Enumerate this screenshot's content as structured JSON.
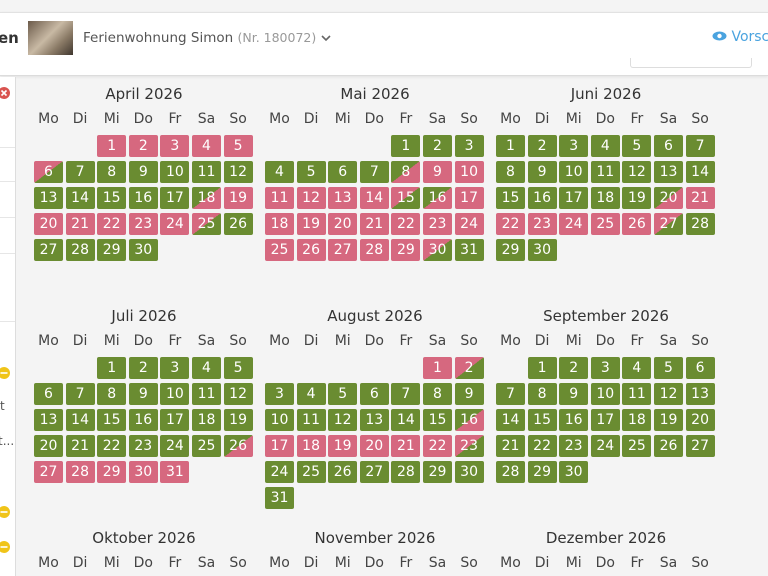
{
  "header": {
    "left_cut": "en",
    "property": "Ferienwohnung Simon",
    "number": "(Nr. 180072)",
    "preview": "Vorsch"
  },
  "sidebar": {
    "items": [
      "t",
      "t..."
    ]
  },
  "calendar": {
    "weekdays": [
      "Mo",
      "Di",
      "Mi",
      "Do",
      "Fr",
      "Sa",
      "So"
    ],
    "status_colors": {
      "f": "#6a8c31",
      "b": "#d6687f"
    },
    "months": [
      {
        "title": "April 2026",
        "weeks": [
          [
            null,
            null,
            [
              1,
              "b"
            ],
            [
              2,
              "b"
            ],
            [
              3,
              "b"
            ],
            [
              4,
              "b"
            ],
            [
              5,
              "b"
            ]
          ],
          [
            [
              6,
              "d"
            ],
            [
              7,
              "f"
            ],
            [
              8,
              "f"
            ],
            [
              9,
              "f"
            ],
            [
              10,
              "f"
            ],
            [
              11,
              "f"
            ],
            [
              12,
              "f"
            ]
          ],
          [
            [
              13,
              "f"
            ],
            [
              14,
              "f"
            ],
            [
              15,
              "f"
            ],
            [
              16,
              "f"
            ],
            [
              17,
              "f"
            ],
            [
              18,
              "a"
            ],
            [
              19,
              "b"
            ]
          ],
          [
            [
              20,
              "b"
            ],
            [
              21,
              "b"
            ],
            [
              22,
              "b"
            ],
            [
              23,
              "b"
            ],
            [
              24,
              "b"
            ],
            [
              25,
              "d"
            ],
            [
              26,
              "f"
            ]
          ],
          [
            [
              27,
              "f"
            ],
            [
              28,
              "f"
            ],
            [
              29,
              "f"
            ],
            [
              30,
              "f"
            ]
          ]
        ]
      },
      {
        "title": "Mai 2026",
        "weeks": [
          [
            null,
            null,
            null,
            null,
            [
              1,
              "f"
            ],
            [
              2,
              "f"
            ],
            [
              3,
              "f"
            ]
          ],
          [
            [
              4,
              "f"
            ],
            [
              5,
              "f"
            ],
            [
              6,
              "f"
            ],
            [
              7,
              "f"
            ],
            [
              8,
              "a"
            ],
            [
              9,
              "b"
            ],
            [
              10,
              "b"
            ]
          ],
          [
            [
              11,
              "b"
            ],
            [
              12,
              "b"
            ],
            [
              13,
              "b"
            ],
            [
              14,
              "b"
            ],
            [
              15,
              "d"
            ],
            [
              16,
              "a"
            ],
            [
              17,
              "b"
            ]
          ],
          [
            [
              18,
              "b"
            ],
            [
              19,
              "b"
            ],
            [
              20,
              "b"
            ],
            [
              21,
              "b"
            ],
            [
              22,
              "b"
            ],
            [
              23,
              "b"
            ],
            [
              24,
              "b"
            ]
          ],
          [
            [
              25,
              "b"
            ],
            [
              26,
              "b"
            ],
            [
              27,
              "b"
            ],
            [
              28,
              "b"
            ],
            [
              29,
              "b"
            ],
            [
              30,
              "d"
            ],
            [
              31,
              "f"
            ]
          ]
        ]
      },
      {
        "title": "Juni 2026",
        "weeks": [
          [
            [
              1,
              "f"
            ],
            [
              2,
              "f"
            ],
            [
              3,
              "f"
            ],
            [
              4,
              "f"
            ],
            [
              5,
              "f"
            ],
            [
              6,
              "f"
            ],
            [
              7,
              "f"
            ]
          ],
          [
            [
              8,
              "f"
            ],
            [
              9,
              "f"
            ],
            [
              10,
              "f"
            ],
            [
              11,
              "f"
            ],
            [
              12,
              "f"
            ],
            [
              13,
              "f"
            ],
            [
              14,
              "f"
            ]
          ],
          [
            [
              15,
              "f"
            ],
            [
              16,
              "f"
            ],
            [
              17,
              "f"
            ],
            [
              18,
              "f"
            ],
            [
              19,
              "f"
            ],
            [
              20,
              "a"
            ],
            [
              21,
              "b"
            ]
          ],
          [
            [
              22,
              "b"
            ],
            [
              23,
              "b"
            ],
            [
              24,
              "b"
            ],
            [
              25,
              "b"
            ],
            [
              26,
              "b"
            ],
            [
              27,
              "d"
            ],
            [
              28,
              "f"
            ]
          ],
          [
            [
              29,
              "f"
            ],
            [
              30,
              "f"
            ]
          ]
        ]
      },
      {
        "title": "Juli 2026",
        "weeks": [
          [
            null,
            null,
            [
              1,
              "f"
            ],
            [
              2,
              "f"
            ],
            [
              3,
              "f"
            ],
            [
              4,
              "f"
            ],
            [
              5,
              "f"
            ]
          ],
          [
            [
              6,
              "f"
            ],
            [
              7,
              "f"
            ],
            [
              8,
              "f"
            ],
            [
              9,
              "f"
            ],
            [
              10,
              "f"
            ],
            [
              11,
              "f"
            ],
            [
              12,
              "f"
            ]
          ],
          [
            [
              13,
              "f"
            ],
            [
              14,
              "f"
            ],
            [
              15,
              "f"
            ],
            [
              16,
              "f"
            ],
            [
              17,
              "f"
            ],
            [
              18,
              "f"
            ],
            [
              19,
              "f"
            ]
          ],
          [
            [
              20,
              "f"
            ],
            [
              21,
              "f"
            ],
            [
              22,
              "f"
            ],
            [
              23,
              "f"
            ],
            [
              24,
              "f"
            ],
            [
              25,
              "f"
            ],
            [
              26,
              "a"
            ]
          ],
          [
            [
              27,
              "b"
            ],
            [
              28,
              "b"
            ],
            [
              29,
              "b"
            ],
            [
              30,
              "b"
            ],
            [
              31,
              "b"
            ]
          ]
        ]
      },
      {
        "title": "August 2026",
        "weeks": [
          [
            null,
            null,
            null,
            null,
            null,
            [
              1,
              "b"
            ],
            [
              2,
              "d"
            ]
          ],
          [
            [
              3,
              "f"
            ],
            [
              4,
              "f"
            ],
            [
              5,
              "f"
            ],
            [
              6,
              "f"
            ],
            [
              7,
              "f"
            ],
            [
              8,
              "f"
            ],
            [
              9,
              "f"
            ]
          ],
          [
            [
              10,
              "f"
            ],
            [
              11,
              "f"
            ],
            [
              12,
              "f"
            ],
            [
              13,
              "f"
            ],
            [
              14,
              "f"
            ],
            [
              15,
              "f"
            ],
            [
              16,
              "a"
            ]
          ],
          [
            [
              17,
              "b"
            ],
            [
              18,
              "b"
            ],
            [
              19,
              "b"
            ],
            [
              20,
              "b"
            ],
            [
              21,
              "b"
            ],
            [
              22,
              "b"
            ],
            [
              23,
              "d"
            ]
          ],
          [
            [
              24,
              "f"
            ],
            [
              25,
              "f"
            ],
            [
              26,
              "f"
            ],
            [
              27,
              "f"
            ],
            [
              28,
              "f"
            ],
            [
              29,
              "f"
            ],
            [
              30,
              "f"
            ]
          ],
          [
            [
              31,
              "f"
            ]
          ]
        ]
      },
      {
        "title": "September 2026",
        "weeks": [
          [
            null,
            [
              1,
              "f"
            ],
            [
              2,
              "f"
            ],
            [
              3,
              "f"
            ],
            [
              4,
              "f"
            ],
            [
              5,
              "f"
            ],
            [
              6,
              "f"
            ]
          ],
          [
            [
              7,
              "f"
            ],
            [
              8,
              "f"
            ],
            [
              9,
              "f"
            ],
            [
              10,
              "f"
            ],
            [
              11,
              "f"
            ],
            [
              12,
              "f"
            ],
            [
              13,
              "f"
            ]
          ],
          [
            [
              14,
              "f"
            ],
            [
              15,
              "f"
            ],
            [
              16,
              "f"
            ],
            [
              17,
              "f"
            ],
            [
              18,
              "f"
            ],
            [
              19,
              "f"
            ],
            [
              20,
              "f"
            ]
          ],
          [
            [
              21,
              "f"
            ],
            [
              22,
              "f"
            ],
            [
              23,
              "f"
            ],
            [
              24,
              "f"
            ],
            [
              25,
              "f"
            ],
            [
              26,
              "f"
            ],
            [
              27,
              "f"
            ]
          ],
          [
            [
              28,
              "f"
            ],
            [
              29,
              "f"
            ],
            [
              30,
              "f"
            ]
          ]
        ]
      },
      {
        "title": "Oktober 2026",
        "weeks": []
      },
      {
        "title": "November 2026",
        "weeks": []
      },
      {
        "title": "Dezember 2026",
        "weeks": []
      }
    ]
  }
}
